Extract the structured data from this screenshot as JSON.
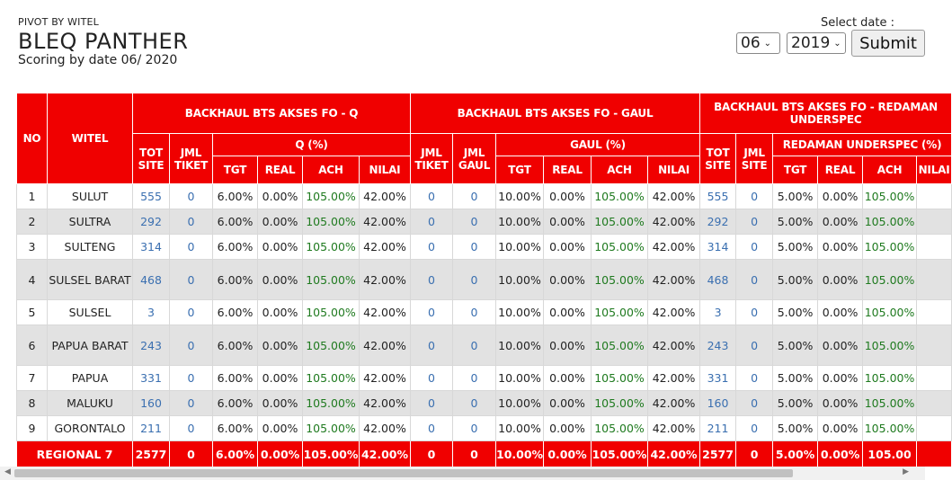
{
  "header": {
    "kicker": "PIVOT BY WITEL",
    "title": "BLEQ PANTHER",
    "subtitle": "Scoring by date 06/ 2020"
  },
  "date_picker": {
    "label": "Select date :",
    "month": "06",
    "year": "2019",
    "submit": "Submit"
  },
  "table": {
    "col_no": "NO",
    "col_witel": "WITEL",
    "group1": "BACKHAUL BTS AKSES FO - Q",
    "group2": "BACKHAUL BTS AKSES FO - GAUL",
    "group3": "BACKHAUL BTS AKSES FO - REDAMAN UNDERSPEC",
    "sub": {
      "tot_site": "TOT SITE",
      "jml_tiket": "JML TIKET",
      "q_pct": "Q (%)",
      "jml_gaul": "JML GAUL",
      "gaul_pct": "GAUL (%)",
      "jml_site": "JML SITE",
      "redaman_pct": "REDAMAN UNDERSPEC (%)"
    },
    "metric": {
      "tgt": "TGT",
      "real": "REAL",
      "ach": "ACH",
      "nilai": "NILAI"
    },
    "rows": [
      {
        "no": "1",
        "witel": "SULUT",
        "q_tot": "555",
        "q_jml": "0",
        "q_tgt": "6.00%",
        "q_real": "0.00%",
        "q_ach": "105.00%",
        "q_nilai": "42.00%",
        "g_tiket": "0",
        "g_gaul": "0",
        "g_tgt": "10.00%",
        "g_real": "0.00%",
        "g_ach": "105.00%",
        "g_nilai": "42.00%",
        "r_tot": "555",
        "r_jml": "0",
        "r_tgt": "5.00%",
        "r_real": "0.00%",
        "r_ach": "105.00%"
      },
      {
        "no": "2",
        "witel": "SULTRA",
        "q_tot": "292",
        "q_jml": "0",
        "q_tgt": "6.00%",
        "q_real": "0.00%",
        "q_ach": "105.00%",
        "q_nilai": "42.00%",
        "g_tiket": "0",
        "g_gaul": "0",
        "g_tgt": "10.00%",
        "g_real": "0.00%",
        "g_ach": "105.00%",
        "g_nilai": "42.00%",
        "r_tot": "292",
        "r_jml": "0",
        "r_tgt": "5.00%",
        "r_real": "0.00%",
        "r_ach": "105.00%"
      },
      {
        "no": "3",
        "witel": "SULTENG",
        "q_tot": "314",
        "q_jml": "0",
        "q_tgt": "6.00%",
        "q_real": "0.00%",
        "q_ach": "105.00%",
        "q_nilai": "42.00%",
        "g_tiket": "0",
        "g_gaul": "0",
        "g_tgt": "10.00%",
        "g_real": "0.00%",
        "g_ach": "105.00%",
        "g_nilai": "42.00%",
        "r_tot": "314",
        "r_jml": "0",
        "r_tgt": "5.00%",
        "r_real": "0.00%",
        "r_ach": "105.00%"
      },
      {
        "no": "4",
        "witel": "SULSEL BARAT",
        "q_tot": "468",
        "q_jml": "0",
        "q_tgt": "6.00%",
        "q_real": "0.00%",
        "q_ach": "105.00%",
        "q_nilai": "42.00%",
        "g_tiket": "0",
        "g_gaul": "0",
        "g_tgt": "10.00%",
        "g_real": "0.00%",
        "g_ach": "105.00%",
        "g_nilai": "42.00%",
        "r_tot": "468",
        "r_jml": "0",
        "r_tgt": "5.00%",
        "r_real": "0.00%",
        "r_ach": "105.00%"
      },
      {
        "no": "5",
        "witel": "SULSEL",
        "q_tot": "3",
        "q_jml": "0",
        "q_tgt": "6.00%",
        "q_real": "0.00%",
        "q_ach": "105.00%",
        "q_nilai": "42.00%",
        "g_tiket": "0",
        "g_gaul": "0",
        "g_tgt": "10.00%",
        "g_real": "0.00%",
        "g_ach": "105.00%",
        "g_nilai": "42.00%",
        "r_tot": "3",
        "r_jml": "0",
        "r_tgt": "5.00%",
        "r_real": "0.00%",
        "r_ach": "105.00%"
      },
      {
        "no": "6",
        "witel": "PAPUA BARAT",
        "q_tot": "243",
        "q_jml": "0",
        "q_tgt": "6.00%",
        "q_real": "0.00%",
        "q_ach": "105.00%",
        "q_nilai": "42.00%",
        "g_tiket": "0",
        "g_gaul": "0",
        "g_tgt": "10.00%",
        "g_real": "0.00%",
        "g_ach": "105.00%",
        "g_nilai": "42.00%",
        "r_tot": "243",
        "r_jml": "0",
        "r_tgt": "5.00%",
        "r_real": "0.00%",
        "r_ach": "105.00%"
      },
      {
        "no": "7",
        "witel": "PAPUA",
        "q_tot": "331",
        "q_jml": "0",
        "q_tgt": "6.00%",
        "q_real": "0.00%",
        "q_ach": "105.00%",
        "q_nilai": "42.00%",
        "g_tiket": "0",
        "g_gaul": "0",
        "g_tgt": "10.00%",
        "g_real": "0.00%",
        "g_ach": "105.00%",
        "g_nilai": "42.00%",
        "r_tot": "331",
        "r_jml": "0",
        "r_tgt": "5.00%",
        "r_real": "0.00%",
        "r_ach": "105.00%"
      },
      {
        "no": "8",
        "witel": "MALUKU",
        "q_tot": "160",
        "q_jml": "0",
        "q_tgt": "6.00%",
        "q_real": "0.00%",
        "q_ach": "105.00%",
        "q_nilai": "42.00%",
        "g_tiket": "0",
        "g_gaul": "0",
        "g_tgt": "10.00%",
        "g_real": "0.00%",
        "g_ach": "105.00%",
        "g_nilai": "42.00%",
        "r_tot": "160",
        "r_jml": "0",
        "r_tgt": "5.00%",
        "r_real": "0.00%",
        "r_ach": "105.00%"
      },
      {
        "no": "9",
        "witel": "GORONTALO",
        "q_tot": "211",
        "q_jml": "0",
        "q_tgt": "6.00%",
        "q_real": "0.00%",
        "q_ach": "105.00%",
        "q_nilai": "42.00%",
        "g_tiket": "0",
        "g_gaul": "0",
        "g_tgt": "10.00%",
        "g_real": "0.00%",
        "g_ach": "105.00%",
        "g_nilai": "42.00%",
        "r_tot": "211",
        "r_jml": "0",
        "r_tgt": "5.00%",
        "r_real": "0.00%",
        "r_ach": "105.00%"
      }
    ],
    "total": {
      "label": "REGIONAL 7",
      "q_tot": "2577",
      "q_jml": "0",
      "q_tgt": "6.00%",
      "q_real": "0.00%",
      "q_ach": "105.00%",
      "q_nilai": "42.00%",
      "g_tiket": "0",
      "g_gaul": "0",
      "g_tgt": "10.00%",
      "g_real": "0.00%",
      "g_ach": "105.00%",
      "g_nilai": "42.00%",
      "r_tot": "2577",
      "r_jml": "0",
      "r_tgt": "5.00%",
      "r_real": "0.00%",
      "r_ach": "105.00"
    }
  },
  "colors": {
    "header_red": "#f00000",
    "link_blue": "#3a6fb0",
    "ach_green": "#1f7a1f",
    "alt_row": "#e2e2e2"
  }
}
